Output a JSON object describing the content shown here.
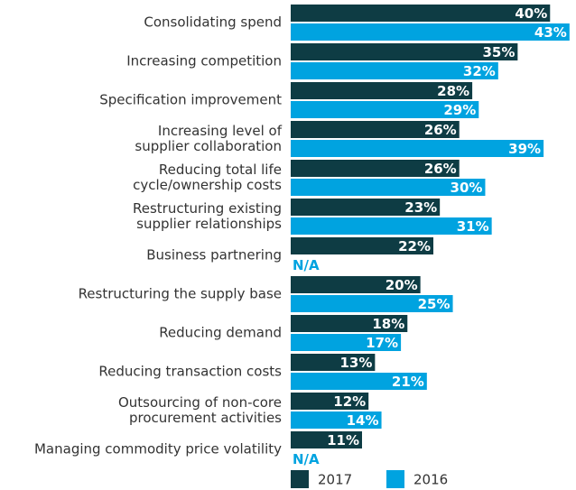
{
  "chart_data": {
    "type": "bar",
    "orientation": "horizontal",
    "categories": [
      "Consolidating spend",
      "Increasing competition",
      "Specification improvement",
      "Increasing level of\nsupplier collaboration",
      "Reducing total life\ncycle/ownership costs",
      "Restructuring existing\nsupplier relationships",
      "Business partnering",
      "Restructuring the supply base",
      "Reducing demand",
      "Reducing transaction costs",
      "Outsourcing of non-core\nprocurement activities",
      "Managing commodity price volatility"
    ],
    "series": [
      {
        "name": "2017",
        "color": "#0e3c44",
        "values": [
          40,
          35,
          28,
          26,
          26,
          23,
          22,
          20,
          18,
          13,
          12,
          11
        ],
        "value_labels": [
          "40%",
          "35%",
          "28%",
          "26%",
          "26%",
          "23%",
          "22%",
          "20%",
          "18%",
          "13%",
          "12%",
          "11%"
        ]
      },
      {
        "name": "2016",
        "color": "#00a3e0",
        "values": [
          43,
          32,
          29,
          39,
          30,
          31,
          null,
          25,
          17,
          21,
          14,
          null
        ],
        "value_labels": [
          "43%",
          "32%",
          "29%",
          "39%",
          "30%",
          "31%",
          "N/A",
          "25%",
          "17%",
          "21%",
          "14%",
          "N/A"
        ]
      }
    ],
    "xlim": [
      0,
      44
    ],
    "legend": "bottom"
  }
}
